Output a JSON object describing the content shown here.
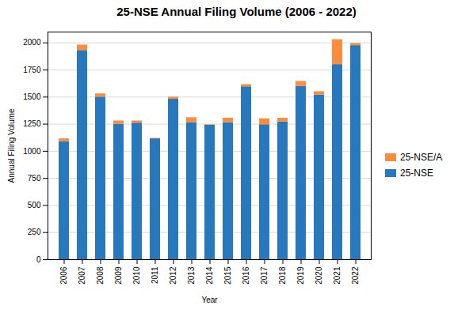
{
  "chart_data": {
    "type": "bar",
    "stacked": true,
    "title": "25-NSE Annual Filing Volume (2006 - 2022)",
    "xlabel": "Year",
    "ylabel": "Annual Filing Volume",
    "categories": [
      "2006",
      "2007",
      "2008",
      "2009",
      "2010",
      "2011",
      "2012",
      "2013",
      "2014",
      "2015",
      "2016",
      "2017",
      "2018",
      "2019",
      "2020",
      "2021",
      "2022"
    ],
    "series": [
      {
        "name": "25-NSE",
        "color": "#2878bd",
        "values": [
          1090,
          1930,
          1500,
          1250,
          1260,
          1115,
          1480,
          1265,
          1240,
          1265,
          1595,
          1245,
          1270,
          1600,
          1520,
          1800,
          1975
        ]
      },
      {
        "name": "25-NSE/A",
        "color": "#fd8d3c",
        "values": [
          25,
          50,
          30,
          30,
          20,
          5,
          20,
          45,
          5,
          40,
          20,
          55,
          35,
          45,
          30,
          230,
          20
        ]
      }
    ],
    "ylim": [
      0,
      2100
    ],
    "yticks": [
      0,
      250,
      500,
      750,
      1000,
      1250,
      1500,
      1750,
      2000
    ],
    "grid": true,
    "legend": "right"
  }
}
